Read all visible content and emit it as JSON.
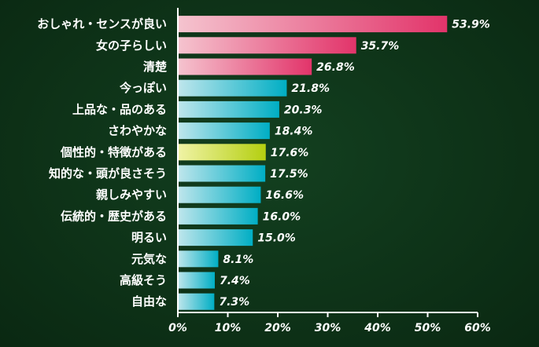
{
  "chart_data": {
    "type": "bar",
    "orientation": "horizontal",
    "title": "",
    "xlabel": "",
    "ylabel": "",
    "xlim": [
      0,
      60
    ],
    "unit": "%",
    "grid": false,
    "categories": [
      "おしゃれ・センスが良い",
      "女の子らしい",
      "清楚",
      "今っぽい",
      "上品な・品のある",
      "さわやかな",
      "個性的・特徴がある",
      "知的な・頭が良さそう",
      "親しみやすい",
      "伝統的・歴史がある",
      "明るい",
      "元気な",
      "高級そう",
      "自由な"
    ],
    "values": [
      53.9,
      35.7,
      26.8,
      21.8,
      20.3,
      18.4,
      17.6,
      17.5,
      16.6,
      16.0,
      15.0,
      8.1,
      7.4,
      7.3
    ],
    "value_labels": [
      "53.9%",
      "35.7%",
      "26.8%",
      "21.8%",
      "20.3%",
      "18.4%",
      "17.6%",
      "17.5%",
      "16.6%",
      "16.0%",
      "15.0%",
      "8.1%",
      "7.4%",
      "7.3%"
    ],
    "bar_colors": [
      "pink",
      "pink",
      "pink",
      "teal",
      "teal",
      "teal",
      "green",
      "teal",
      "teal",
      "teal",
      "teal",
      "teal",
      "teal",
      "teal"
    ],
    "x_ticks": [
      0,
      10,
      20,
      30,
      40,
      50,
      60
    ],
    "x_tick_labels": [
      "0%",
      "10%",
      "20%",
      "30%",
      "40%",
      "50%",
      "60%"
    ],
    "colors": {
      "pink_start": "#f5c4cf",
      "pink_end": "#e2346a",
      "teal_start": "#bfe6ec",
      "teal_end": "#00aec4",
      "green_start": "#f0f3a6",
      "green_end": "#b4cf10",
      "axis": "#ffffff",
      "text": "#ffffff"
    }
  }
}
